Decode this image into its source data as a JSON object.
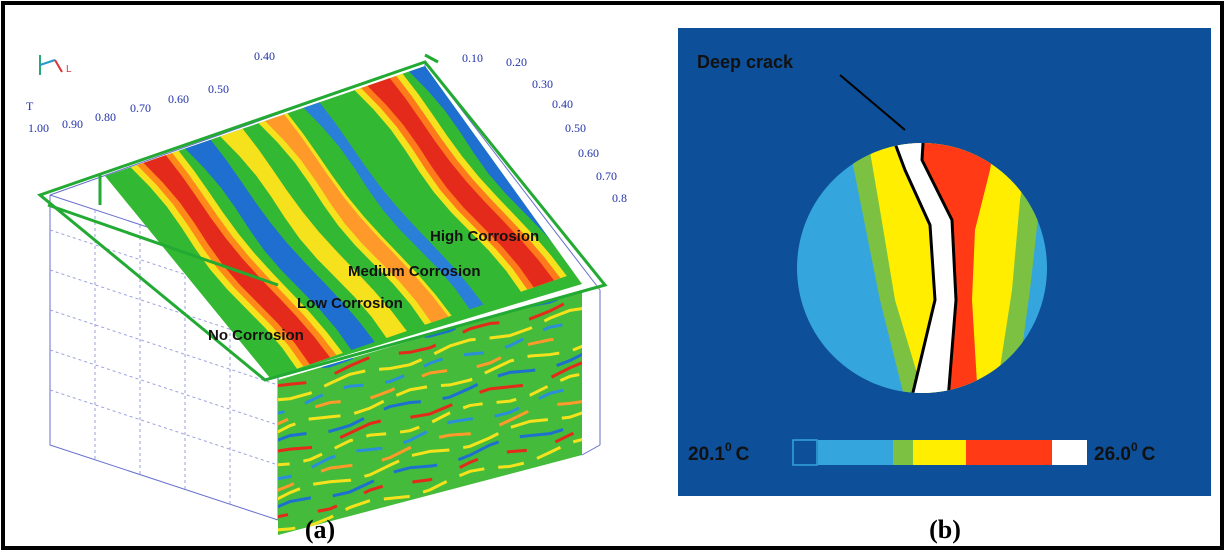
{
  "panel_a": {
    "axis_t_label": "T",
    "axis_l_label": "L",
    "left_ticks": [
      "1.00",
      "0.90",
      "0.80",
      "0.70",
      "0.60",
      "0.50",
      "0.40"
    ],
    "right_ticks": [
      "0.10",
      "0.20",
      "0.30",
      "0.40",
      "0.50",
      "0.60",
      "0.70",
      "0.8"
    ],
    "annotations": [
      "High Corrosion",
      "Medium Corrosion",
      "Low Corrosion",
      "No Corrosion"
    ],
    "caption": "(a)"
  },
  "panel_b": {
    "annotation": "Deep crack",
    "scale_min": {
      "value": "20.1",
      "degree": "0",
      "unit": "C"
    },
    "scale_max": {
      "value": "26.0",
      "degree": "0",
      "unit": "C"
    },
    "caption": "(b)"
  }
}
